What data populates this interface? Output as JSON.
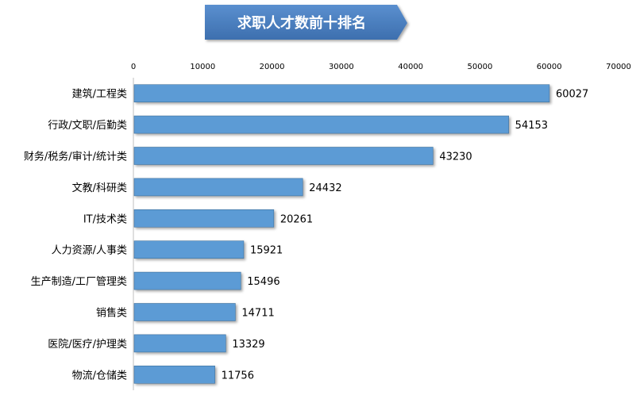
{
  "chart_data": {
    "type": "bar",
    "orientation": "horizontal",
    "title": "求职人才数前十排名",
    "xlabel": "",
    "ylabel": "",
    "xlim": [
      0,
      70000
    ],
    "ticks": [
      0,
      10000,
      20000,
      30000,
      40000,
      50000,
      60000,
      70000
    ],
    "axis_position": "top",
    "grid": false,
    "legend": "none",
    "categories": [
      "建筑/工程类",
      "行政/文职/后勤类",
      "财务/税务/审计/统计类",
      "文教/科研类",
      "IT/技术类",
      "人力资源/人事类",
      "生产制造/工厂管理类",
      "销售类",
      "医院/医疗/护理类",
      "物流/仓储类"
    ],
    "values": [
      60027,
      54153,
      43230,
      24432,
      20261,
      15921,
      15496,
      14711,
      13329,
      11756
    ],
    "colors": {
      "bar": "#5b9bd5",
      "bar_stroke": "#41719c",
      "title_bg": "#4a7ebb",
      "title_bg_dark": "#3a6aa5"
    }
  }
}
